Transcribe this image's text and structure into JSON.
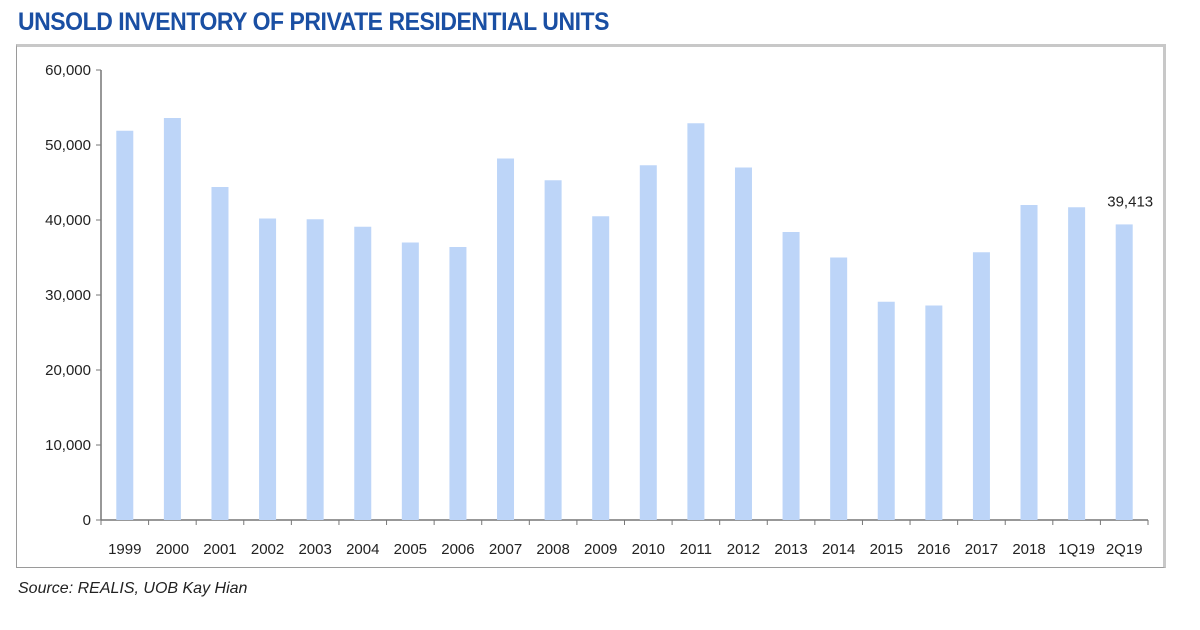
{
  "chart_data": {
    "type": "bar",
    "title": "UNSOLD INVENTORY OF PRIVATE RESIDENTIAL UNITS",
    "xlabel": "",
    "ylabel": "",
    "categories": [
      "1999",
      "2000",
      "2001",
      "2002",
      "2003",
      "2004",
      "2005",
      "2006",
      "2007",
      "2008",
      "2009",
      "2010",
      "2011",
      "2012",
      "2013",
      "2014",
      "2015",
      "2016",
      "2017",
      "2018",
      "1Q19",
      "2Q19"
    ],
    "values": [
      51900,
      53600,
      44400,
      40200,
      40100,
      39100,
      37000,
      36400,
      48200,
      45300,
      40500,
      47300,
      52900,
      47000,
      38400,
      35000,
      29100,
      28600,
      35700,
      42000,
      41700,
      39413
    ],
    "data_labels": [
      {
        "category": "2Q19",
        "text": "39,413"
      }
    ],
    "ylim": [
      0,
      60000
    ],
    "yticks": [
      "0",
      "10,000",
      "20,000",
      "30,000",
      "40,000",
      "50,000",
      "60,000"
    ],
    "ytick_values": [
      0,
      10000,
      20000,
      30000,
      40000,
      50000,
      60000
    ],
    "grid": false,
    "legend": "none",
    "bar_color": "#bdd5f8",
    "title_color": "#1a4fa3"
  },
  "source": "Source: REALIS, UOB Kay Hian"
}
